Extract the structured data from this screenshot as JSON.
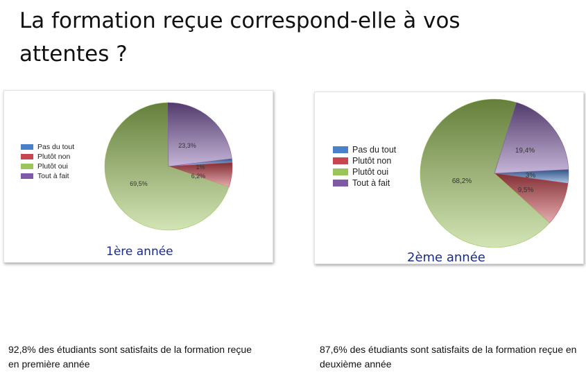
{
  "title": "La formation reçue correspond-elle à vos attentes ?",
  "colors": {
    "pas_du_tout": "#4a7fc9",
    "plutot_non": "#c8464f",
    "plutot_oui": "#9bc45a",
    "tout_a_fait": "#7e5aa6",
    "year_label": "#1a2a8c"
  },
  "chart_data": [
    {
      "type": "pie",
      "title": "1ère année",
      "legend_position": "left",
      "labels": [
        "Pas du tout",
        "Plutôt non",
        "Plutôt oui",
        "Tout à fait"
      ],
      "values": [
        1,
        6.2,
        69.5,
        23.3
      ],
      "value_labels": [
        "1%",
        "6,2%",
        "69,5%",
        "23,3%"
      ]
    },
    {
      "type": "pie",
      "title": "2ème année",
      "legend_position": "left",
      "labels": [
        "Pas du tout",
        "Plutôt non",
        "Plutôt oui",
        "Tout à fait"
      ],
      "values": [
        3,
        9.5,
        68.2,
        19.4
      ],
      "value_labels": [
        "3%",
        "9,5%",
        "68,2%",
        "19,4%"
      ]
    }
  ],
  "captions": [
    "92,8% des étudiants sont satisfaits de la formation reçue en première année",
    "87,6% des étudiants sont satisfaits de la formation reçue en deuxième année"
  ]
}
